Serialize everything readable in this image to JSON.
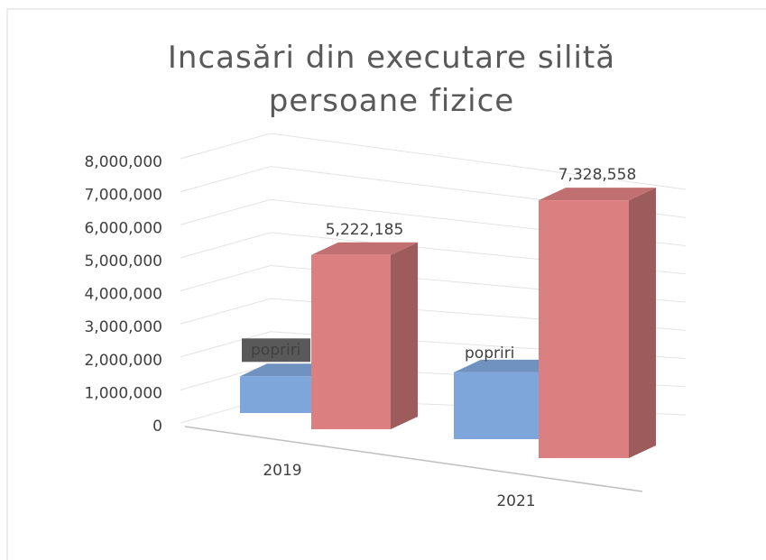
{
  "chart_data": {
    "type": "bar3d",
    "title": "Incasări din executare silită persoane fizice",
    "categories": [
      "2019",
      "2021"
    ],
    "series": [
      {
        "name": "popriri",
        "color": "#7fa6db",
        "values": [
          1100000,
          1900000
        ]
      },
      {
        "color": "#db7f80",
        "values": [
          5222185,
          7328558
        ],
        "value_labels": [
          "5,222,185",
          "7,328,558"
        ]
      }
    ],
    "ylim": [
      0,
      8000000
    ],
    "yticks": [
      0,
      {
        "value": 1000000,
        "label": "1,000,000"
      },
      {
        "value": 2000000,
        "label": "2,000,000"
      },
      {
        "value": 3000000,
        "label": "3,000,000"
      },
      {
        "value": 4000000,
        "label": "4,000,000"
      },
      {
        "value": 5000000,
        "label": "5,000,000"
      },
      {
        "value": 6000000,
        "label": "6,000,000"
      },
      {
        "value": 7000000,
        "label": "7,000,000"
      },
      {
        "value": 8000000,
        "label": "8,000,000"
      }
    ],
    "grid": true
  }
}
